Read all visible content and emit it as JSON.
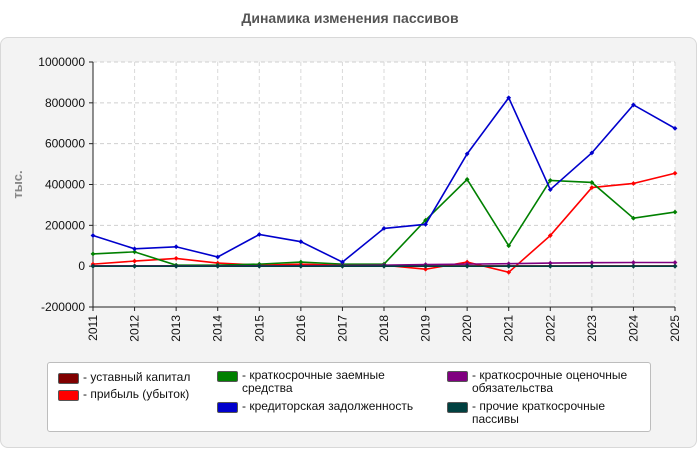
{
  "chart_data": {
    "type": "line",
    "title": "Динамика изменения пассивов",
    "ylabel": "тыс.",
    "xlabel": "",
    "ylim": [
      -200000,
      1000000
    ],
    "yticks": [
      1000000,
      800000,
      600000,
      400000,
      200000,
      0,
      -200000
    ],
    "ytick_labels": [
      "1000000",
      "800000",
      "600000",
      "400000",
      "200000",
      "0",
      "-200000"
    ],
    "grid": true,
    "legend_position": "bottom",
    "x": [
      "2011",
      "2012",
      "2013",
      "2014",
      "2015",
      "2016",
      "2017",
      "2018",
      "2019",
      "2020",
      "2021",
      "2022",
      "2023",
      "2024",
      "2025"
    ],
    "series": [
      {
        "name": "- уставный капитал",
        "color": "#800000",
        "values": [
          1000,
          1000,
          1000,
          1000,
          1000,
          1000,
          1000,
          1000,
          1000,
          1000,
          1000,
          1000,
          1000,
          1000,
          1000
        ]
      },
      {
        "name": "- прибыль (убыток)",
        "color": "#ff0000",
        "values": [
          10000,
          25000,
          38000,
          15000,
          5000,
          10000,
          5000,
          5000,
          -15000,
          20000,
          -30000,
          150000,
          385000,
          405000,
          455000
        ]
      },
      {
        "name": "- краткосрочные заемные средства",
        "color": "#008000",
        "values": [
          60000,
          70000,
          5000,
          5000,
          10000,
          20000,
          10000,
          10000,
          225000,
          425000,
          100000,
          420000,
          410000,
          235000,
          265000
        ]
      },
      {
        "name": "- кредиторская задолженность",
        "color": "#0000cc",
        "values": [
          150000,
          85000,
          95000,
          45000,
          155000,
          120000,
          20000,
          185000,
          205000,
          550000,
          825000,
          375000,
          555000,
          790000,
          675000
        ]
      },
      {
        "name": "- краткосрочные оценочные обязательства",
        "color": "#800080",
        "values": [
          1000,
          1000,
          1000,
          1000,
          2000,
          2000,
          3000,
          5000,
          8000,
          10000,
          12000,
          15000,
          17000,
          18000,
          18000
        ]
      },
      {
        "name": "- прочие краткосрочные пассивы",
        "color": "#004040",
        "values": [
          0,
          0,
          0,
          0,
          0,
          0,
          0,
          0,
          0,
          0,
          0,
          0,
          0,
          0,
          0
        ]
      }
    ]
  }
}
